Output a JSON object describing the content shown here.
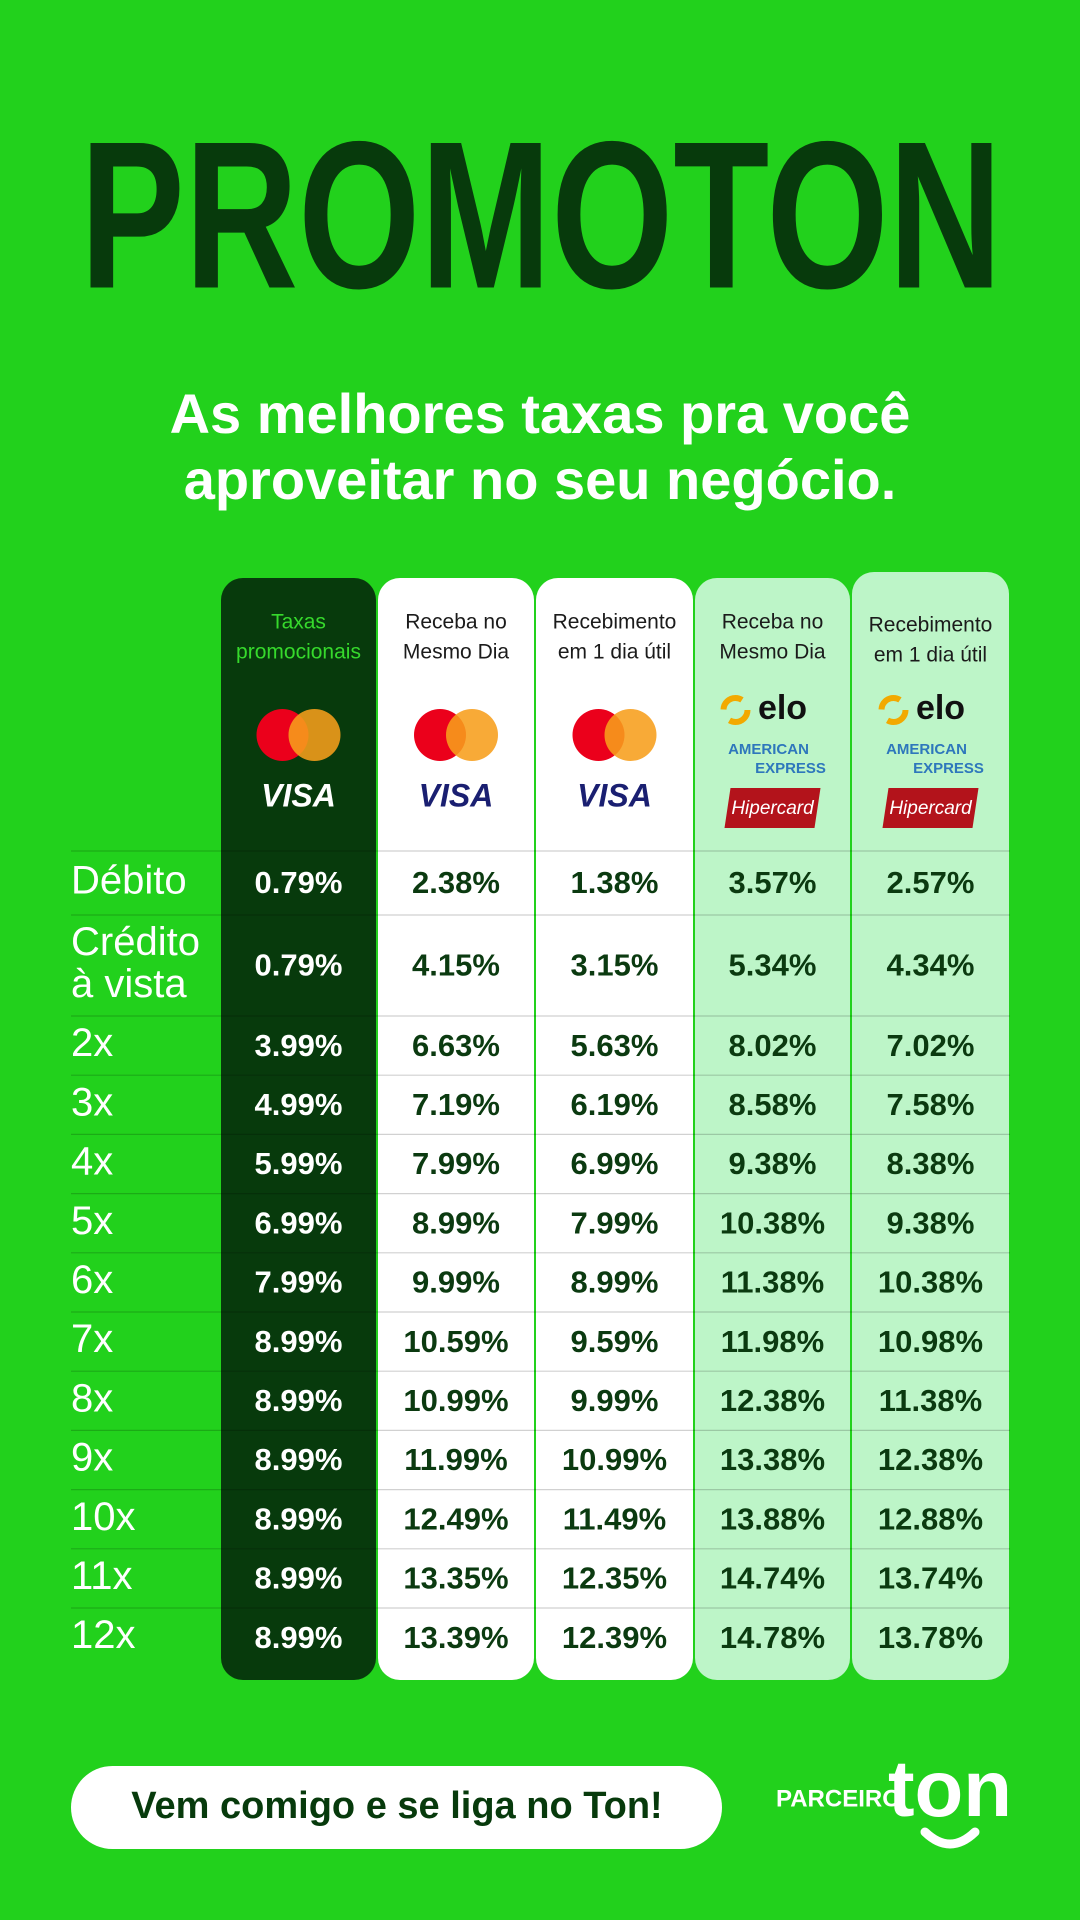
{
  "header": {
    "title": "PROMOTON",
    "subtitle": [
      "As melhores taxas pra você",
      "aproveitar no seu negócio."
    ]
  },
  "table": {
    "columns": [
      {
        "label": [
          "Taxas",
          "promocionais"
        ],
        "brands": [
          "VISA"
        ]
      },
      {
        "label": [
          "Receba no",
          "Mesmo Dia"
        ],
        "brands": [
          "VISA"
        ]
      },
      {
        "label": [
          "Recebimento",
          "em 1 dia útil"
        ],
        "brands": [
          "VISA"
        ]
      },
      {
        "label": [
          "Receba no",
          "Mesmo Dia"
        ],
        "brands": [
          "elo",
          "AMERICAN",
          "EXPRESS",
          "Hipercard"
        ]
      },
      {
        "label": [
          "Recebimento",
          "em 1 dia útil"
        ],
        "brands": [
          "elo",
          "AMERICAN",
          "EXPRESS",
          "Hipercard"
        ]
      }
    ],
    "rows": [
      {
        "label": [
          "Débito"
        ],
        "rates": [
          "0.79%",
          "2.38%",
          "1.38%",
          "3.57%",
          "2.57%"
        ]
      },
      {
        "label": [
          "Crédito",
          "à vista"
        ],
        "rates": [
          "0.79%",
          "4.15%",
          "3.15%",
          "5.34%",
          "4.34%"
        ]
      },
      {
        "label": [
          "2x"
        ],
        "rates": [
          "3.99%",
          "6.63%",
          "5.63%",
          "8.02%",
          "7.02%"
        ]
      },
      {
        "label": [
          "3x"
        ],
        "rates": [
          "4.99%",
          "7.19%",
          "6.19%",
          "8.58%",
          "7.58%"
        ]
      },
      {
        "label": [
          "4x"
        ],
        "rates": [
          "5.99%",
          "7.99%",
          "6.99%",
          "9.38%",
          "8.38%"
        ]
      },
      {
        "label": [
          "5x"
        ],
        "rates": [
          "6.99%",
          "8.99%",
          "7.99%",
          "10.38%",
          "9.38%"
        ]
      },
      {
        "label": [
          "6x"
        ],
        "rates": [
          "7.99%",
          "9.99%",
          "8.99%",
          "11.38%",
          "10.38%"
        ]
      },
      {
        "label": [
          "7x"
        ],
        "rates": [
          "8.99%",
          "10.59%",
          "9.59%",
          "11.98%",
          "10.98%"
        ]
      },
      {
        "label": [
          "8x"
        ],
        "rates": [
          "8.99%",
          "10.99%",
          "9.99%",
          "12.38%",
          "11.38%"
        ]
      },
      {
        "label": [
          "9x"
        ],
        "rates": [
          "8.99%",
          "11.99%",
          "10.99%",
          "13.38%",
          "12.38%"
        ]
      },
      {
        "label": [
          "10x"
        ],
        "rates": [
          "8.99%",
          "12.49%",
          "11.49%",
          "13.88%",
          "12.88%"
        ]
      },
      {
        "label": [
          "11x"
        ],
        "rates": [
          "8.99%",
          "13.35%",
          "12.35%",
          "14.74%",
          "13.74%"
        ]
      },
      {
        "label": [
          "12x"
        ],
        "rates": [
          "8.99%",
          "13.39%",
          "12.39%",
          "14.78%",
          "13.78%"
        ]
      }
    ]
  },
  "footer": {
    "cta": "Vem comigo e se liga no Ton!",
    "partner": "PARCEIRO",
    "logo": "ton"
  }
}
